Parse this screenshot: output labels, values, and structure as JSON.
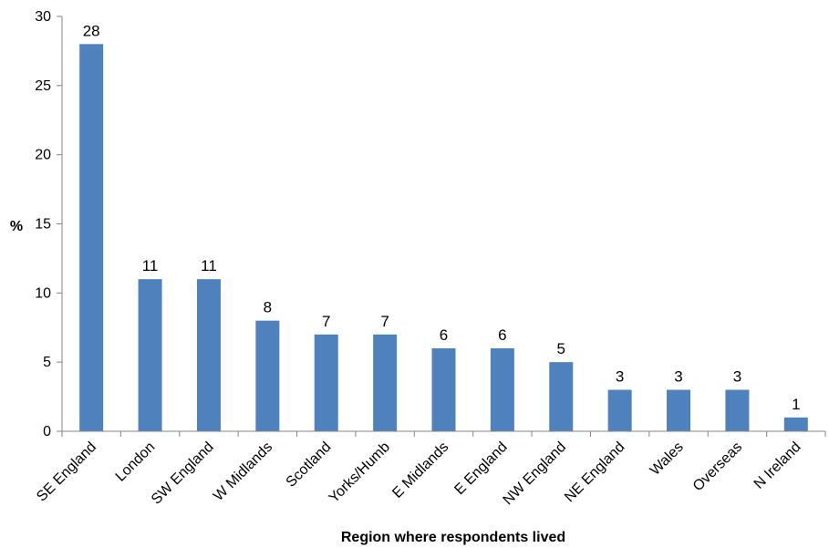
{
  "chart_data": {
    "type": "bar",
    "categories": [
      "SE England",
      "London",
      "SW England",
      "W Midlands",
      "Scotland",
      "Yorks/Humb",
      "E Midlands",
      "E England",
      "NW England",
      "NE England",
      "Wales",
      "Overseas",
      "N Ireland"
    ],
    "values": [
      28,
      11,
      11,
      8,
      7,
      7,
      6,
      6,
      5,
      3,
      3,
      3,
      1
    ],
    "title": "",
    "xlabel": "Region where respondents lived",
    "ylabel": "%",
    "ylim": [
      0,
      30
    ],
    "yticks": [
      0,
      5,
      10,
      15,
      20,
      25,
      30
    ],
    "grid": false,
    "bar_color": "#4f81bd",
    "axis_color": "#868686"
  }
}
